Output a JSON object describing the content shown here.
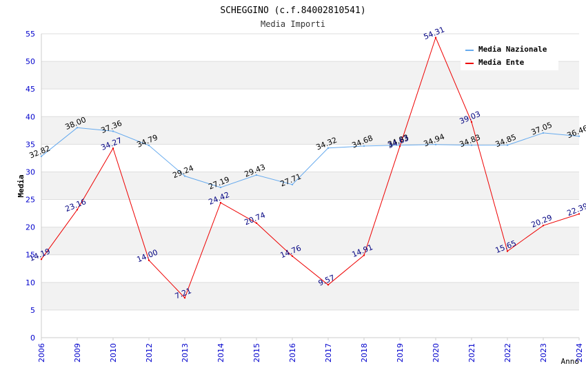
{
  "chart_data": {
    "type": "line",
    "title": "SCHEGGINO (c.f.84002810541)",
    "subtitle": "Media Importi",
    "xlabel": "Anno",
    "ylabel": "Media",
    "ylim": [
      0,
      55
    ],
    "yticks": [
      0,
      5,
      10,
      15,
      20,
      25,
      30,
      35,
      40,
      45,
      50,
      55
    ],
    "grid": true,
    "legend_position": "top-right",
    "categories": [
      "2006",
      "2009",
      "2010",
      "2012",
      "2013",
      "2014",
      "2015",
      "2016",
      "2017",
      "2018",
      "2019",
      "2020",
      "2021",
      "2022",
      "2023",
      "2024"
    ],
    "series": [
      {
        "name": "Media Nazionale",
        "color": "#66aaee",
        "label_color": "#000000",
        "values": [
          32.82,
          38.0,
          37.36,
          34.79,
          29.24,
          27.19,
          29.43,
          27.71,
          34.32,
          34.68,
          34.83,
          34.94,
          34.83,
          34.85,
          37.05,
          36.46
        ],
        "labels": [
          "32.82",
          "38.00",
          "37.36",
          "34.79",
          "29.24",
          "27.19",
          "29.43",
          "27.71",
          "34.32",
          "34.68",
          "34.83",
          "34.94",
          "34.83",
          "34.85",
          "37.05",
          "36.46"
        ]
      },
      {
        "name": "Media Ente",
        "color": "#ee0000",
        "label_color": "#000080",
        "values": [
          14.19,
          23.16,
          34.27,
          14.0,
          7.21,
          24.42,
          20.74,
          14.76,
          9.57,
          14.91,
          34.63,
          54.31,
          39.03,
          15.65,
          20.29,
          22.39
        ],
        "labels": [
          "14.19",
          "23.16",
          "34.27",
          "14.00",
          "7.21",
          "24.42",
          "20.74",
          "14.76",
          "9.57",
          "14.91",
          "34.63",
          "54.31",
          "39.03",
          "15.65",
          "20.29",
          "22.39"
        ]
      }
    ],
    "colors": {
      "band": "#f2f2f2",
      "grid": "#dddddd",
      "axis": "#cccccc",
      "tick_label": "#0000cc",
      "title": "#000000",
      "subtitle": "#333333"
    }
  }
}
